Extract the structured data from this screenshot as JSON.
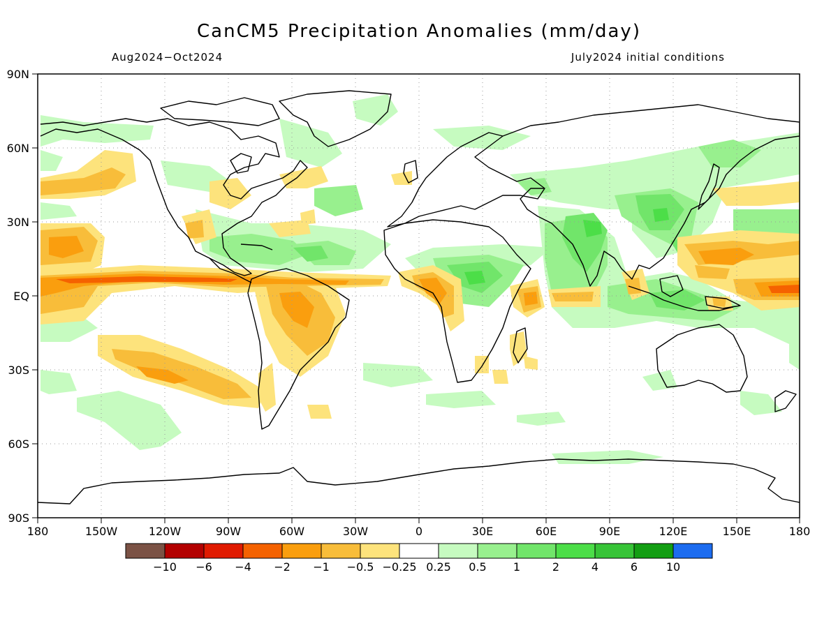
{
  "header": {
    "title": "CanCM5 Precipitation Anomalies (mm/day)",
    "period": "Aug2024−Oct2024",
    "init": "July2024 initial conditions"
  },
  "map": {
    "lon_labels": [
      "180",
      "150W",
      "120W",
      "90W",
      "60W",
      "30W",
      "0",
      "30E",
      "60E",
      "90E",
      "120E",
      "150E",
      "180"
    ],
    "lat_labels": [
      "90N",
      "60N",
      "30N",
      "EQ",
      "30S",
      "60S",
      "90S"
    ]
  },
  "colorbar": {
    "labels": [
      "−10",
      "−6",
      "−4",
      "−2",
      "−1",
      "−0.5",
      "−0.25",
      "0.25",
      "0.5",
      "1",
      "2",
      "4",
      "6",
      "10"
    ],
    "colors": [
      "#7b5245",
      "#b30000",
      "#e01a00",
      "#f56200",
      "#fa9e0e",
      "#f8bd3a",
      "#fde37c",
      "#ffffff",
      "#c6fbc0",
      "#98f08e",
      "#71e56a",
      "#4cde48",
      "#37c437",
      "#139e13",
      "#1c6cf0"
    ]
  },
  "palette": {
    "dry_strong": "#f56200",
    "dry_mod": "#fa9e0e",
    "dry_weak": "#f8bd3a",
    "dry_light": "#fde37c",
    "wet_light": "#c6fbc0",
    "wet_weak": "#98f08e",
    "wet_mod": "#71e56a",
    "wet_strong": "#4cde48"
  }
}
